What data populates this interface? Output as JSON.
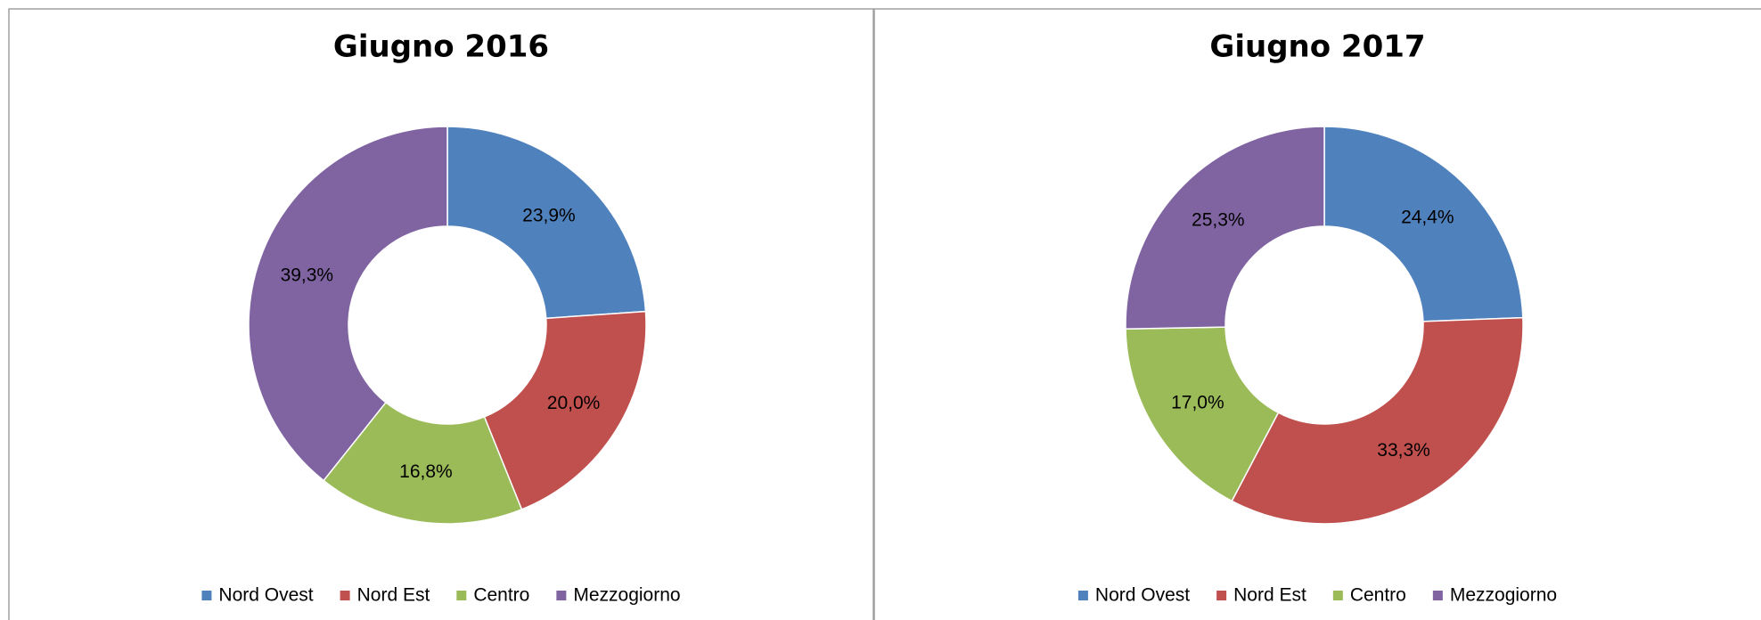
{
  "chart_data": [
    {
      "type": "donut",
      "title": "Giugno 2016",
      "categories": [
        "Nord Ovest",
        "Nord Est",
        "Centro",
        "Mezzogiorno"
      ],
      "values": [
        23.9,
        20.0,
        16.8,
        39.3
      ],
      "value_labels": [
        "23,9%",
        "20,0%",
        "16,8%",
        "39,3%"
      ],
      "colors": [
        "#4f81bd",
        "#c0504d",
        "#9bbb59",
        "#8064a2"
      ],
      "legend": "bottom"
    },
    {
      "type": "donut",
      "title": "Giugno 2017",
      "categories": [
        "Nord Ovest",
        "Nord Est",
        "Centro",
        "Mezzogiorno"
      ],
      "values": [
        24.4,
        33.3,
        17.0,
        25.3
      ],
      "value_labels": [
        "24,4%",
        "33,3%",
        "17,0%",
        "25,3%"
      ],
      "colors": [
        "#4f81bd",
        "#c0504d",
        "#9bbb59",
        "#8064a2"
      ],
      "legend": "bottom"
    }
  ]
}
